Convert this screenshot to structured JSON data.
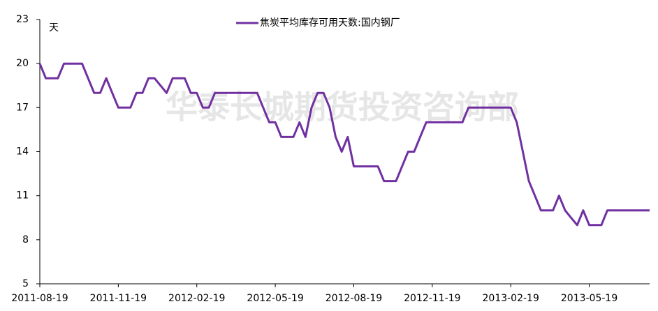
{
  "chart_data": {
    "type": "line",
    "watermark": "华泰长城期货投资咨询部",
    "y_unit": "天",
    "categories": [
      "2011-08-19",
      null,
      null,
      null,
      null,
      null,
      null,
      null,
      null,
      null,
      null,
      null,
      null,
      "2011-11-19",
      null,
      null,
      null,
      null,
      null,
      null,
      null,
      null,
      null,
      null,
      null,
      null,
      "2012-02-19",
      null,
      null,
      null,
      null,
      null,
      null,
      null,
      null,
      null,
      null,
      null,
      null,
      "2012-05-19",
      null,
      null,
      null,
      null,
      null,
      null,
      null,
      null,
      null,
      null,
      null,
      null,
      "2012-08-19",
      null,
      null,
      null,
      null,
      null,
      null,
      null,
      null,
      null,
      null,
      null,
      null,
      "2012-11-19",
      null,
      null,
      null,
      null,
      null,
      null,
      null,
      null,
      null,
      null,
      null,
      null,
      "2013-02-19",
      null,
      null,
      null,
      null,
      null,
      null,
      null,
      null,
      null,
      null,
      null,
      null,
      "2013-05-19",
      null,
      null,
      null,
      null,
      null,
      null,
      null,
      null,
      null,
      null
    ],
    "series": [
      {
        "name": "焦炭平均库存可用天数:国内钢厂",
        "color": "#7030a0",
        "values": [
          20,
          19,
          19,
          19,
          20,
          20,
          20,
          20,
          19,
          18,
          18,
          19,
          18,
          17,
          17,
          17,
          18,
          18,
          19,
          19,
          18.5,
          18,
          19,
          19,
          19,
          18,
          18,
          17,
          17,
          18,
          18,
          18,
          18,
          18,
          18,
          18,
          18,
          17,
          16,
          16,
          15,
          15,
          15,
          16,
          15,
          17,
          18,
          18,
          17,
          15,
          14,
          15,
          13,
          13,
          13,
          13,
          13,
          12,
          12,
          12,
          13,
          14,
          14,
          15,
          16,
          16,
          16,
          16,
          16,
          16,
          16,
          17,
          17,
          17,
          17,
          17,
          17,
          17,
          17,
          16,
          14,
          12,
          11,
          10,
          10,
          10,
          11,
          10,
          9.5,
          9,
          10,
          9,
          9,
          9,
          10,
          10,
          10,
          10,
          10,
          10,
          10,
          10
        ]
      }
    ],
    "ylim": [
      5,
      23
    ],
    "yticks": [
      5,
      8,
      11,
      14,
      17,
      20,
      23
    ],
    "legend": "top"
  }
}
